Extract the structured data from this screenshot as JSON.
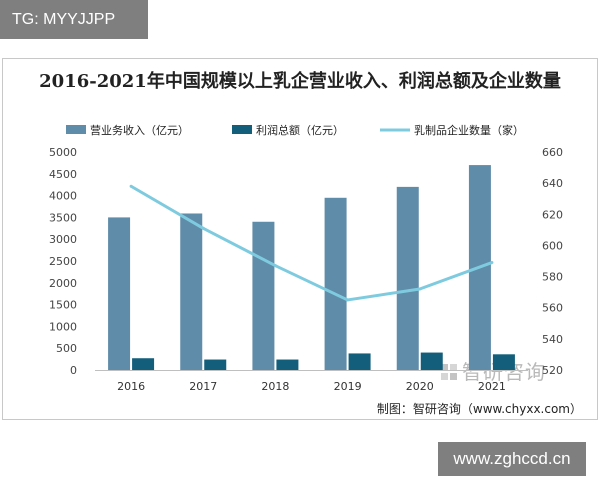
{
  "tag": "TG: MYYJJPP",
  "watermark": "www.zghccd.cn",
  "brand": "智研咨询",
  "credit": "制图：智研咨询（www.chyxx.com）",
  "colors": {
    "revenue": "#5f8ca8",
    "profit": "#135f7b",
    "count": "#7ecbe0"
  },
  "chart_data": {
    "type": "bar",
    "title": "2016-2021年中国规模以上乳企营业收入、利润总额及企业数量",
    "categories": [
      "2016",
      "2017",
      "2018",
      "2019",
      "2020",
      "2021"
    ],
    "series": [
      {
        "name": "营业务收入（亿元）",
        "type": "bar",
        "axis": "left",
        "values": [
          3500,
          3590,
          3400,
          3950,
          4200,
          4700
        ]
      },
      {
        "name": "利润总额（亿元）",
        "type": "bar",
        "axis": "left",
        "values": [
          270,
          240,
          240,
          380,
          400,
          360
        ]
      },
      {
        "name": "乳制品企业数量（家）",
        "type": "line",
        "axis": "right",
        "values": [
          638,
          611,
          587,
          565,
          572,
          589
        ]
      }
    ],
    "ylim_left": [
      0,
      5000
    ],
    "yticks_left": [
      "0",
      "500",
      "1000",
      "1500",
      "2000",
      "2500",
      "3000",
      "3500",
      "4000",
      "4500",
      "5000"
    ],
    "ylim_right": [
      520,
      660
    ],
    "yticks_right": [
      "520",
      "540",
      "560",
      "580",
      "600",
      "620",
      "640",
      "660"
    ],
    "legend_position": "top"
  }
}
